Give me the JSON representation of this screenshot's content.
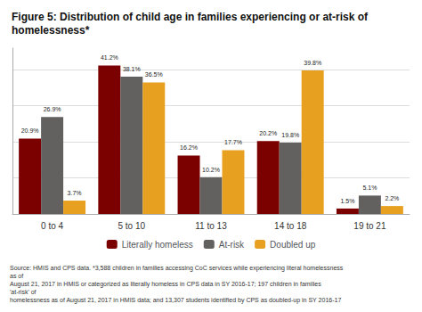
{
  "chart_data": {
    "type": "bar",
    "title": "Figure 5: Distribution of child age in families experiencing or at-risk of homelessness*",
    "source": "Source: HMIS and CPS data. *3,588 children in families accessing CoC services while experiencing literal homelessness as of\nAugust 21, 2017 in HMIS or categorized as literally homeless in CPS data in SY 2016-17; 197 children in families 'at-risk' of\nhomelessness as of August 21, 2017 in HMIS data; and 13,307 students identified by CPS as doubled-up in SY 2016-17",
    "categories": [
      "0 to 4",
      "5 to 10",
      "11 to 13",
      "14 to 18",
      "19 to 21"
    ],
    "series": [
      {
        "name": "Literally homeless",
        "color": "#7B0000",
        "values": [
          20.9,
          41.2,
          16.2,
          20.2,
          1.5
        ],
        "value_labels": [
          "20.9%",
          "41.2%",
          "16.2%",
          "20.2%",
          "1.5%"
        ]
      },
      {
        "name": "At-risk",
        "color": "#636060",
        "values": [
          26.9,
          38.1,
          10.2,
          19.8,
          5.1
        ],
        "value_labels": [
          "26.9%",
          "38.1%",
          "10.2%",
          "19.8%",
          "5.1%"
        ]
      },
      {
        "name": "Doubled up",
        "color": "#E8A020",
        "values": [
          3.7,
          36.5,
          17.7,
          39.8,
          2.2
        ],
        "value_labels": [
          "3.7%",
          "36.5%",
          "17.7%",
          "39.8%",
          "2.2%"
        ]
      }
    ],
    "ylim": [
      0,
      46
    ],
    "yticks": [
      0,
      10,
      20,
      30,
      40
    ],
    "grid": true,
    "legend": "bottom",
    "data_labels": true,
    "tick_labels": "x"
  }
}
